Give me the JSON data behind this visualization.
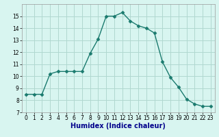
{
  "x": [
    0,
    1,
    2,
    3,
    4,
    5,
    6,
    7,
    8,
    9,
    10,
    11,
    12,
    13,
    14,
    15,
    16,
    17,
    18,
    19,
    20,
    21,
    22,
    23
  ],
  "y": [
    8.5,
    8.5,
    8.5,
    10.2,
    10.4,
    10.4,
    10.4,
    10.4,
    11.9,
    13.1,
    15.0,
    15.0,
    15.3,
    14.6,
    14.2,
    14.0,
    13.6,
    11.2,
    9.9,
    9.1,
    8.1,
    7.7,
    7.5,
    7.5
  ],
  "line_color": "#1a7a6e",
  "marker": "D",
  "markersize": 2.5,
  "linewidth": 1.0,
  "bg_color": "#d8f5f0",
  "grid_color": "#b0d8d0",
  "xlabel": "Humidex (Indice chaleur)",
  "xlabel_fontsize": 7,
  "xlabel_color": "#00008b",
  "xlim": [
    -0.5,
    23.5
  ],
  "ylim": [
    7,
    16
  ],
  "yticks": [
    7,
    8,
    9,
    10,
    11,
    12,
    13,
    14,
    15
  ],
  "xticks": [
    0,
    1,
    2,
    3,
    4,
    5,
    6,
    7,
    8,
    9,
    10,
    11,
    12,
    13,
    14,
    15,
    16,
    17,
    18,
    19,
    20,
    21,
    22,
    23
  ],
  "tick_fontsize": 5.5
}
